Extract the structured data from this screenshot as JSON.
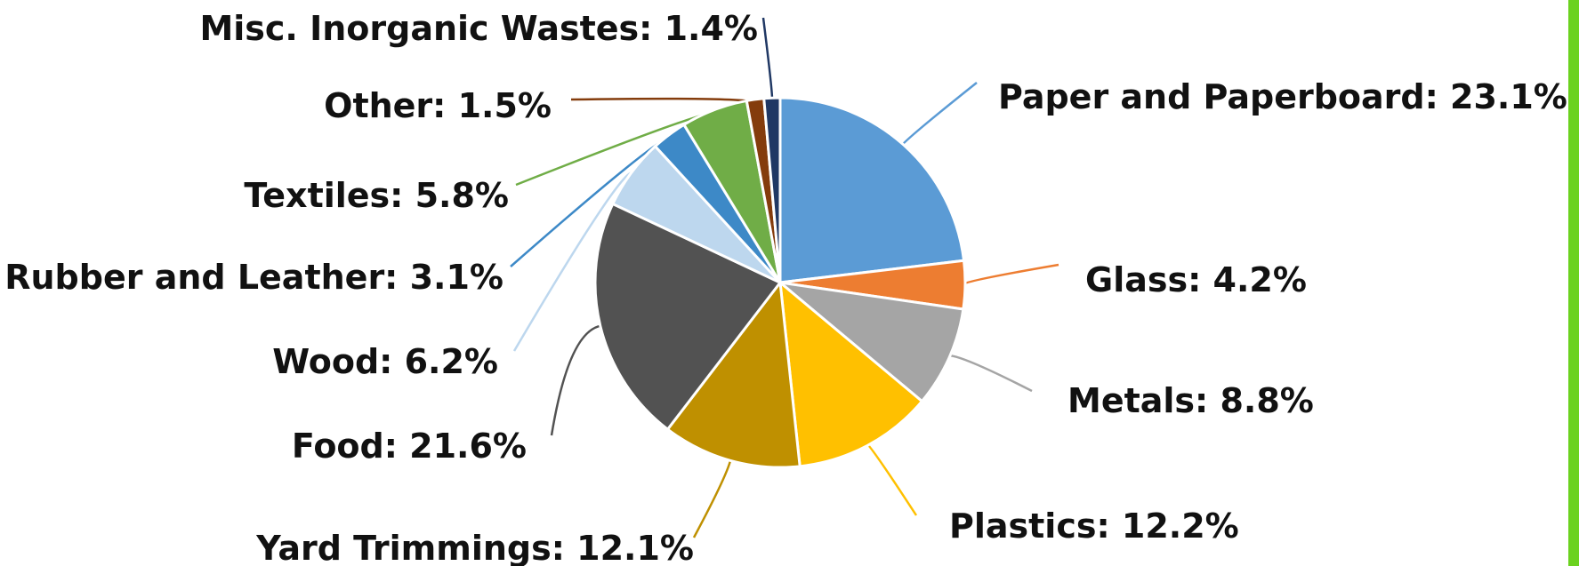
{
  "chart_data": {
    "type": "pie",
    "slices": [
      {
        "label": "Paper and Paperboard",
        "value": 23.1,
        "color": "#5b9bd5",
        "text": "Paper and Paperboard: 23.1%"
      },
      {
        "label": "Glass",
        "value": 4.2,
        "color": "#ed7d31",
        "text": "Glass: 4.2%"
      },
      {
        "label": "Metals",
        "value": 8.8,
        "color": "#a5a5a5",
        "text": "Metals: 8.8%"
      },
      {
        "label": "Plastics",
        "value": 12.2,
        "color": "#ffc000",
        "text": "Plastics: 12.2%"
      },
      {
        "label": "Yard Trimmings",
        "value": 12.1,
        "color": "#bf9000",
        "text": "Yard Trimmings: 12.1%"
      },
      {
        "label": "Food",
        "value": 21.6,
        "color": "#525252",
        "text": "Food: 21.6%"
      },
      {
        "label": "Wood",
        "value": 6.2,
        "color": "#bdd7ee",
        "text": "Wood: 6.2%"
      },
      {
        "label": "Rubber and Leather",
        "value": 3.1,
        "color": "#3d89c7",
        "text": "Rubber and Leather: 3.1%"
      },
      {
        "label": "Textiles",
        "value": 5.8,
        "color": "#70ad47",
        "text": "Textiles: 5.8%"
      },
      {
        "label": "Other",
        "value": 1.5,
        "color": "#843c0c",
        "text": "Other: 1.5%"
      },
      {
        "label": "Misc. Inorganic Wastes",
        "value": 1.4,
        "color": "#203864",
        "text": "Misc. Inorganic Wastes: 1.4%"
      }
    ],
    "unit": "%",
    "start_angle": "12 o'clock",
    "direction": "clockwise",
    "legend": "none"
  },
  "decor": {
    "right_bar_color": "#6bd21f"
  }
}
